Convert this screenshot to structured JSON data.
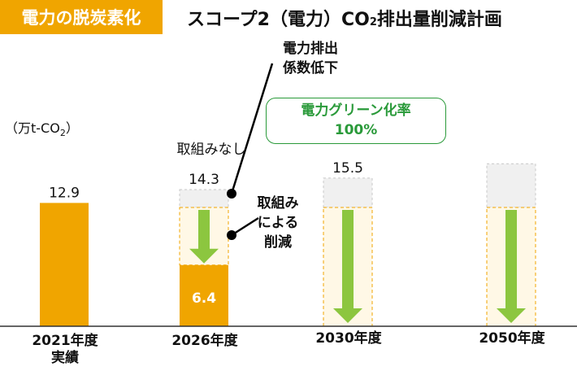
{
  "header": {
    "badge": "電力の脱炭素化",
    "title_pre": "スコープ2（電力）CO",
    "title_sub": "2",
    "title_post": "排出量削減計画"
  },
  "unit": {
    "pre": "（万t-CO",
    "sub": "2",
    "post": "）"
  },
  "annotations": {
    "coef_line1": "電力排出",
    "coef_line2": "係数低下",
    "no_action": "取組みなし",
    "reduce_line1": "取組み",
    "reduce_line2": "による",
    "reduce_line3": "削減",
    "green_line1": "電力グリーン化率",
    "green_line2": "100%"
  },
  "colors": {
    "actual": "#F0A500",
    "projection": "#F0F0F0",
    "reduction_fill": "#FFF8E6",
    "reduction_border": "#F0A500",
    "arrow": "#8CC63F",
    "green_text": "#2a9a3a"
  },
  "chart_data": {
    "type": "bar",
    "categories": [
      "2021年度 実績",
      "2026年度",
      "2030年度",
      "2050年度"
    ],
    "category_lines": [
      [
        "2021年度",
        "実績"
      ],
      [
        "2026年度"
      ],
      [
        "2030年度"
      ],
      [
        "2050年度"
      ]
    ],
    "series": [
      {
        "values": [
          12.9,
          6.4,
          0,
          0
        ]
      },
      {
        "values": [
          null,
          14.3,
          15.5,
          17
        ]
      }
    ],
    "value_labels": [
      "12.9",
      "14.3",
      "15.5",
      "6.4"
    ],
    "ylabel": "（万t-CO2）",
    "ylim": [
      0,
      18
    ],
    "grid": false
  }
}
